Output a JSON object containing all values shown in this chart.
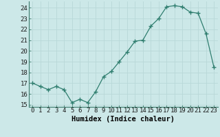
{
  "x": [
    0,
    1,
    2,
    3,
    4,
    5,
    6,
    7,
    8,
    9,
    10,
    11,
    12,
    13,
    14,
    15,
    16,
    17,
    18,
    19,
    20,
    21,
    22,
    23
  ],
  "y": [
    17.0,
    16.7,
    16.4,
    16.7,
    16.4,
    15.2,
    15.5,
    15.2,
    16.2,
    17.6,
    18.1,
    19.0,
    19.9,
    20.9,
    21.0,
    22.3,
    23.0,
    24.1,
    24.2,
    24.1,
    23.6,
    23.5,
    21.6,
    18.5
  ],
  "line_color": "#2e7d6e",
  "marker_color": "#2e7d6e",
  "bg_color": "#cce8e8",
  "grid_color": "#b8d8d8",
  "xlabel": "Humidex (Indice chaleur)",
  "ylim": [
    14.8,
    24.6
  ],
  "xlim": [
    -0.5,
    23.5
  ],
  "yticks": [
    15,
    16,
    17,
    18,
    19,
    20,
    21,
    22,
    23,
    24
  ],
  "xticks": [
    0,
    1,
    2,
    3,
    4,
    5,
    6,
    7,
    8,
    9,
    10,
    11,
    12,
    13,
    14,
    15,
    16,
    17,
    18,
    19,
    20,
    21,
    22,
    23
  ],
  "xlabel_fontsize": 7.5,
  "tick_fontsize": 6.5
}
